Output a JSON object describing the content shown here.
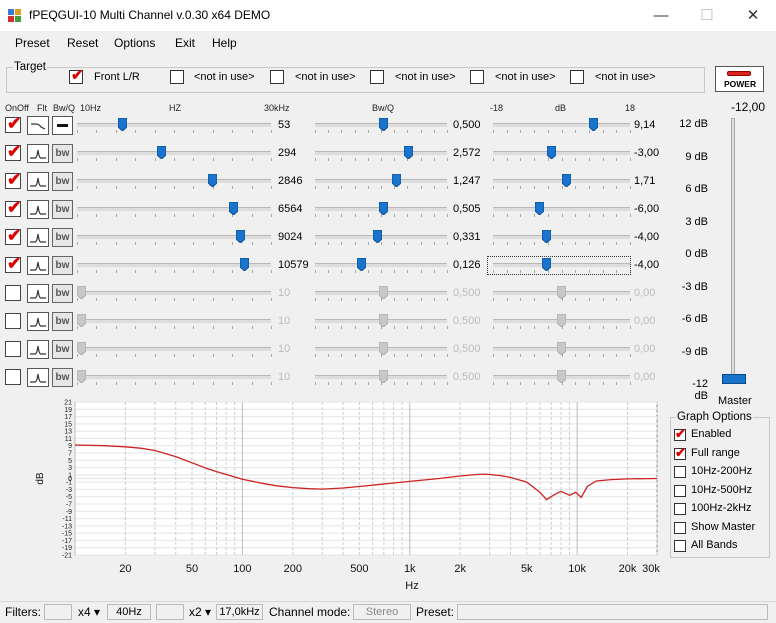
{
  "window": {
    "title": "fPEQGUI-10 Multi Channel v.0.30 x64 DEMO",
    "minimize_icon": "minimize-icon",
    "maximize_icon": "maximize-icon",
    "close_icon": "close-icon",
    "min_glyph": "—",
    "max_glyph": "☐",
    "close_glyph": "✕"
  },
  "menu": [
    "Preset",
    "Reset",
    "Options",
    "Exit",
    "Help"
  ],
  "target": {
    "legend": "Target",
    "channels": [
      {
        "label": "Front L/R",
        "checked": true
      },
      {
        "label": "<not in use>",
        "checked": false
      },
      {
        "label": "<not in use>",
        "checked": false
      },
      {
        "label": "<not in use>",
        "checked": false
      },
      {
        "label": "<not in use>",
        "checked": false
      },
      {
        "label": "<not in use>",
        "checked": false
      }
    ],
    "power_label": "POWER"
  },
  "headers": {
    "onoff": "OnOff",
    "flt": "Flt",
    "bwq": "Bw/Q",
    "hz_min": "10Hz",
    "hz": "HZ",
    "hz_max": "30kHz",
    "bwq2": "Bw/Q",
    "db_min": "-18",
    "db": "dB",
    "db_max": "18"
  },
  "filters": [
    {
      "on": true,
      "type": "low-shelf",
      "bw_label": "",
      "freq": "53",
      "q": "0,500",
      "gain": "9,14",
      "freq_frac": 0.22,
      "q_frac": 0.52,
      "gain_frac": 0.75,
      "enabled": true
    },
    {
      "on": true,
      "type": "peak",
      "bw_label": "bw",
      "freq": "294",
      "q": "2,572",
      "gain": "-3,00",
      "freq_frac": 0.43,
      "q_frac": 0.72,
      "gain_frac": 0.42,
      "enabled": true
    },
    {
      "on": true,
      "type": "peak",
      "bw_label": "bw",
      "freq": "2846",
      "q": "1,247",
      "gain": "1,71",
      "freq_frac": 0.71,
      "q_frac": 0.63,
      "gain_frac": 0.54,
      "enabled": true
    },
    {
      "on": true,
      "type": "peak",
      "bw_label": "bw",
      "freq": "6564",
      "q": "0,505",
      "gain": "-6,00",
      "freq_frac": 0.82,
      "q_frac": 0.52,
      "gain_frac": 0.33,
      "enabled": true
    },
    {
      "on": true,
      "type": "peak",
      "bw_label": "bw",
      "freq": "9024",
      "q": "0,331",
      "gain": "-4,00",
      "freq_frac": 0.86,
      "q_frac": 0.47,
      "gain_frac": 0.38,
      "enabled": true
    },
    {
      "on": true,
      "type": "peak",
      "bw_label": "bw",
      "freq": "10579",
      "q": "0,126",
      "gain": "-4,00",
      "freq_frac": 0.88,
      "q_frac": 0.34,
      "gain_frac": 0.38,
      "enabled": true,
      "focused": true
    },
    {
      "on": false,
      "type": "peak",
      "bw_label": "bw",
      "freq": "10",
      "q": "0,500",
      "gain": "0,00",
      "freq_frac": 0.0,
      "q_frac": 0.52,
      "gain_frac": 0.5,
      "enabled": false
    },
    {
      "on": false,
      "type": "peak",
      "bw_label": "bw",
      "freq": "10",
      "q": "0,500",
      "gain": "0,00",
      "freq_frac": 0.0,
      "q_frac": 0.52,
      "gain_frac": 0.5,
      "enabled": false
    },
    {
      "on": false,
      "type": "peak",
      "bw_label": "bw",
      "freq": "10",
      "q": "0,500",
      "gain": "0,00",
      "freq_frac": 0.0,
      "q_frac": 0.52,
      "gain_frac": 0.5,
      "enabled": false
    },
    {
      "on": false,
      "type": "peak",
      "bw_label": "bw",
      "freq": "10",
      "q": "0,500",
      "gain": "0,00",
      "freq_frac": 0.0,
      "q_frac": 0.52,
      "gain_frac": 0.5,
      "enabled": false
    }
  ],
  "master": {
    "value": "-12,00",
    "scale": [
      "12 dB",
      "9 dB",
      "6 dB",
      "3 dB",
      "0 dB",
      "-3 dB",
      "-6 dB",
      "-9 dB",
      "-12 dB"
    ],
    "label": "Master",
    "level_frac": 0.0
  },
  "graph_options": {
    "legend": "Graph Options",
    "items": [
      {
        "label": "Enabled",
        "checked": true
      },
      {
        "label": "Full range",
        "checked": true
      },
      {
        "label": "10Hz-200Hz",
        "checked": false
      },
      {
        "label": "10Hz-500Hz",
        "checked": false
      },
      {
        "label": "100Hz-2kHz",
        "checked": false
      },
      {
        "label": "Show Master",
        "checked": false
      },
      {
        "label": "All Bands",
        "checked": false
      }
    ]
  },
  "chart_data": {
    "type": "line",
    "xlabel": "Hz",
    "ylabel": "dB",
    "xscale": "log",
    "xlim": [
      10,
      30000
    ],
    "ylim": [
      -21,
      21
    ],
    "x_ticks": [
      "20",
      "50",
      "100",
      "200",
      "500",
      "1k",
      "2k",
      "5k",
      "10k",
      "20k",
      "30k"
    ],
    "x_tick_values": [
      20,
      50,
      100,
      200,
      500,
      1000,
      2000,
      5000,
      10000,
      20000,
      30000
    ],
    "y_ticks": [
      21,
      19,
      17,
      15,
      13,
      11,
      9,
      7,
      5,
      3,
      1,
      0,
      -1,
      -3,
      -5,
      -7,
      -9,
      -11,
      -13,
      -15,
      -17,
      -19,
      -21
    ],
    "grid": true,
    "line_color": "#cc2222",
    "series": [
      {
        "x": [
          10,
          15,
          20,
          25,
          30,
          40,
          50,
          60,
          70,
          80,
          100,
          130,
          160,
          200,
          250,
          300,
          400,
          500,
          700,
          1000,
          1500,
          2000,
          2500,
          2846,
          3500,
          4000,
          5000,
          6000,
          6564,
          7200,
          8000,
          9024,
          9800,
          10579,
          11500,
          13000,
          16000,
          20000,
          30000
        ],
        "y": [
          9.2,
          9.0,
          8.7,
          8.3,
          7.7,
          6.0,
          4.3,
          2.9,
          1.9,
          1.1,
          -0.2,
          -1.3,
          -2.0,
          -2.5,
          -2.8,
          -2.9,
          -2.6,
          -2.2,
          -1.5,
          -0.8,
          0.0,
          0.7,
          1.1,
          1.2,
          0.8,
          0.3,
          -1.0,
          -3.8,
          -5.8,
          -4.6,
          -3.5,
          -4.6,
          -3.8,
          -5.2,
          -2.2,
          -0.7,
          -0.3,
          -0.1,
          0.0
        ]
      }
    ]
  },
  "status": {
    "filters_label": "Filters:",
    "box1": "",
    "mult1": "x4 ▾",
    "freq1": "40Hz",
    "box2": "",
    "mult2": "x2 ▾",
    "freq2": "17,0kHz",
    "channel_mode_label": "Channel mode:",
    "channel_mode": "Stereo",
    "preset_label": "Preset:",
    "preset": ""
  }
}
